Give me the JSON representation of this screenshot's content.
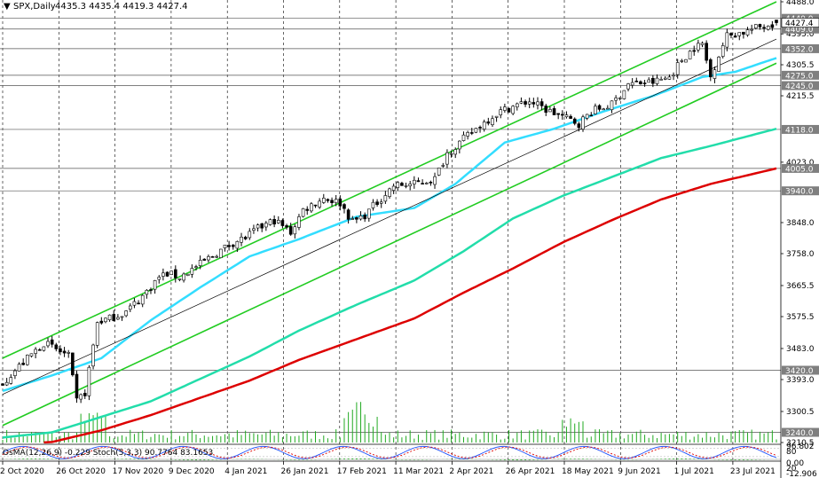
{
  "header": {
    "symbol_text": "SPX,Daily",
    "ohlc_text": "4435.3 4435.4 4419.3 4427.4"
  },
  "oscillator": {
    "label_text": "OsMA(12,26,9) -0.229 Stoch(5,3,3) 90.7764 83.1653",
    "axis_labels": [
      "96.802",
      "80",
      "0.00",
      "20",
      "-12.906"
    ]
  },
  "price_axis": {
    "labels": [
      "4488.0",
      "4395.0",
      "4305.5",
      "4215.5",
      "4023.0",
      "3848.0",
      "3758.0",
      "3665.5",
      "3575.5",
      "3483.0",
      "3393.0",
      "3300.5",
      "3210.5"
    ],
    "levels": [
      {
        "value": 4440.0,
        "text": "4440.0"
      },
      {
        "value": 4409.0,
        "text": "4409.0"
      },
      {
        "value": 4352.0,
        "text": "4352.0"
      },
      {
        "value": 4275.0,
        "text": "4275.0"
      },
      {
        "value": 4245.0,
        "text": "4245.0"
      },
      {
        "value": 4118.0,
        "text": "4118.0"
      },
      {
        "value": 4005.0,
        "text": "4005.0"
      },
      {
        "value": 3940.0,
        "text": "3940.0"
      },
      {
        "value": 3420.0,
        "text": "3420.0"
      },
      {
        "value": 3240.0,
        "text": "3240.0"
      }
    ],
    "current": {
      "value": 4427.4,
      "text": "4427.4"
    }
  },
  "time_axis": {
    "labels": [
      "2 Oct 2020",
      "26 Oct 2020",
      "17 Nov 2020",
      "9 Dec 2020",
      "4 Jan 2021",
      "26 Jan 2021",
      "17 Feb 2021",
      "11 Mar 2021",
      "2 Apr 2021",
      "26 Apr 2021",
      "18 May 2021",
      "9 Jun 2021",
      "1 Jul 2021",
      "23 Jul 2021"
    ]
  },
  "colors": {
    "bull": "#ffffff",
    "bear": "#000000",
    "channel": "#22cc22",
    "ema_fast": "#33ddff",
    "ema_mid": "#22ddaa",
    "ema_slow": "#dd0000",
    "level": "#555555",
    "volume": "#22aa22"
  },
  "chart_data": {
    "type": "candlestick",
    "symbol": "SPX",
    "timeframe": "Daily",
    "last_bar": {
      "open": 4435.3,
      "high": 4435.4,
      "low": 4419.3,
      "close": 4427.4
    },
    "ylim": [
      3210.5,
      4488.0
    ],
    "x_range": [
      "2020-10-02",
      "2021-08-03"
    ],
    "price_path": [
      [
        0,
        3385
      ],
      [
        10,
        3500
      ],
      [
        16,
        3460
      ],
      [
        18,
        3330
      ],
      [
        20,
        3355
      ],
      [
        23,
        3560
      ],
      [
        26,
        3570
      ],
      [
        30,
        3590
      ],
      [
        34,
        3635
      ],
      [
        38,
        3690
      ],
      [
        40,
        3700
      ],
      [
        43,
        3690
      ],
      [
        47,
        3720
      ],
      [
        52,
        3760
      ],
      [
        56,
        3790
      ],
      [
        59,
        3805
      ],
      [
        62,
        3830
      ],
      [
        66,
        3855
      ],
      [
        70,
        3820
      ],
      [
        73,
        3885
      ],
      [
        78,
        3920
      ],
      [
        82,
        3905
      ],
      [
        85,
        3850
      ],
      [
        88,
        3870
      ],
      [
        90,
        3895
      ],
      [
        95,
        3955
      ],
      [
        100,
        3960
      ],
      [
        105,
        3975
      ],
      [
        108,
        4050
      ],
      [
        112,
        4090
      ],
      [
        116,
        4130
      ],
      [
        120,
        4165
      ],
      [
        124,
        4185
      ],
      [
        128,
        4200
      ],
      [
        132,
        4175
      ],
      [
        136,
        4155
      ],
      [
        140,
        4135
      ],
      [
        143,
        4170
      ],
      [
        148,
        4190
      ],
      [
        152,
        4250
      ],
      [
        158,
        4255
      ],
      [
        162,
        4270
      ],
      [
        165,
        4320
      ],
      [
        168,
        4355
      ],
      [
        170,
        4365
      ],
      [
        172,
        4270
      ],
      [
        174,
        4335
      ],
      [
        176,
        4390
      ],
      [
        180,
        4400
      ],
      [
        184,
        4415
      ],
      [
        188,
        4427
      ]
    ],
    "ema_fast": [
      [
        0,
        3360
      ],
      [
        12,
        3405
      ],
      [
        24,
        3455
      ],
      [
        36,
        3565
      ],
      [
        48,
        3660
      ],
      [
        60,
        3750
      ],
      [
        72,
        3800
      ],
      [
        86,
        3865
      ],
      [
        100,
        3890
      ],
      [
        110,
        3960
      ],
      [
        122,
        4080
      ],
      [
        134,
        4120
      ],
      [
        146,
        4170
      ],
      [
        158,
        4215
      ],
      [
        170,
        4270
      ],
      [
        178,
        4285
      ],
      [
        188,
        4325
      ]
    ],
    "ema_mid": [
      [
        0,
        3225
      ],
      [
        12,
        3240
      ],
      [
        24,
        3285
      ],
      [
        36,
        3330
      ],
      [
        48,
        3395
      ],
      [
        60,
        3460
      ],
      [
        72,
        3535
      ],
      [
        86,
        3610
      ],
      [
        100,
        3680
      ],
      [
        112,
        3765
      ],
      [
        124,
        3860
      ],
      [
        136,
        3925
      ],
      [
        148,
        3980
      ],
      [
        160,
        4035
      ],
      [
        172,
        4070
      ],
      [
        188,
        4120
      ]
    ],
    "ema_slow": [
      [
        0,
        3205
      ],
      [
        12,
        3212
      ],
      [
        24,
        3246
      ],
      [
        36,
        3290
      ],
      [
        48,
        3340
      ],
      [
        60,
        3390
      ],
      [
        72,
        3450
      ],
      [
        86,
        3510
      ],
      [
        100,
        3570
      ],
      [
        112,
        3645
      ],
      [
        124,
        3715
      ],
      [
        136,
        3790
      ],
      [
        148,
        3855
      ],
      [
        160,
        3915
      ],
      [
        172,
        3960
      ],
      [
        188,
        4005
      ]
    ],
    "channel_upper": [
      [
        0,
        3455
      ],
      [
        188,
        4488
      ]
    ],
    "channel_lower": [
      [
        0,
        3260
      ],
      [
        188,
        4310
      ]
    ],
    "channel_mid": [
      [
        0,
        3350
      ],
      [
        188,
        4380
      ]
    ],
    "support_resistance": [
      4440.0,
      4409.0,
      4352.0,
      4275.0,
      4245.0,
      4118.0,
      4005.0,
      3940.0,
      3420.0,
      3240.0
    ],
    "oscillator": {
      "name": "OsMA(12,26,9) / Stoch(5,3,3)",
      "osma_last": -0.229,
      "stoch_k_last": 90.7764,
      "stoch_d_last": 83.1653,
      "ylim": [
        -12.906,
        96.802
      ],
      "levels": [
        80,
        20
      ]
    }
  }
}
